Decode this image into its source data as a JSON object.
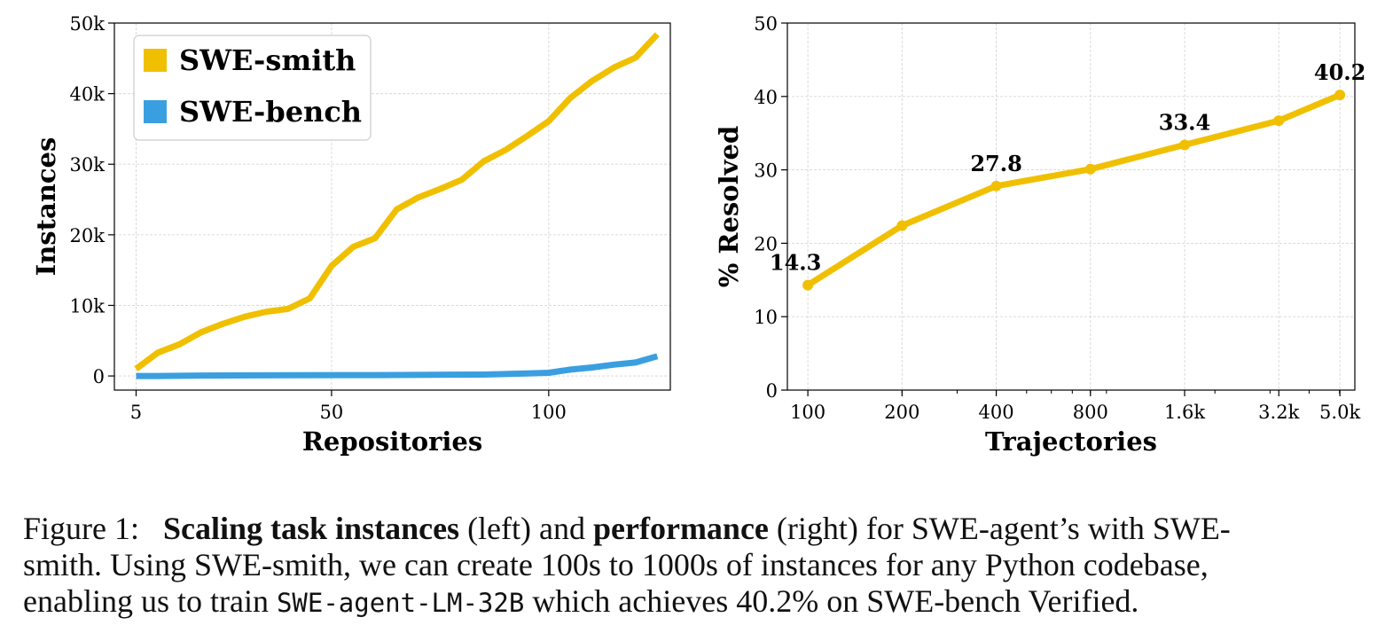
{
  "chart_data": [
    {
      "type": "line",
      "xlabel": "Repositories",
      "ylabel": "Instances",
      "xlim": [
        0,
        128
      ],
      "ylim": [
        -2000,
        50000
      ],
      "xtick_values": [
        5,
        50,
        100
      ],
      "xtick_labels": [
        "5",
        "50",
        "100"
      ],
      "ytick_values": [
        0,
        10000,
        20000,
        30000,
        40000,
        50000
      ],
      "ytick_labels": [
        "0",
        "10k",
        "20k",
        "30k",
        "40k",
        "50k"
      ],
      "grid": true,
      "legend_position": "top-left",
      "series": [
        {
          "name": "SWE-smith",
          "color": "#f0c000",
          "x": [
            5,
            10,
            15,
            20,
            25,
            30,
            35,
            40,
            45,
            50,
            55,
            60,
            65,
            70,
            75,
            80,
            85,
            90,
            95,
            100,
            105,
            110,
            115,
            120,
            125
          ],
          "y": [
            1000,
            3300,
            4500,
            6200,
            7400,
            8400,
            9100,
            9500,
            11000,
            15600,
            18300,
            19500,
            23600,
            25300,
            26500,
            27800,
            30400,
            32000,
            34000,
            36100,
            39400,
            41800,
            43700,
            45100,
            48400
          ]
        },
        {
          "name": "SWE-bench",
          "color": "#3a9fe0",
          "x": [
            5,
            10,
            20,
            40,
            60,
            85,
            95,
            100,
            105,
            110,
            115,
            120,
            125
          ],
          "y": [
            0,
            0,
            60,
            100,
            120,
            200,
            350,
            450,
            900,
            1200,
            1600,
            1900,
            2800
          ]
        }
      ]
    },
    {
      "type": "line",
      "xscale": "log",
      "xlabel": "Trajectories",
      "ylabel": "% Resolved",
      "xlim": [
        86,
        5600
      ],
      "ylim": [
        0,
        50
      ],
      "xtick_values": [
        100,
        200,
        400,
        800,
        1600,
        3200,
        5016
      ],
      "xtick_labels": [
        "100",
        "200",
        "400",
        "800",
        "1.6k",
        "3.2k",
        "5.0k"
      ],
      "ytick_values": [
        0,
        10,
        20,
        30,
        40,
        50
      ],
      "ytick_labels": [
        "0",
        "10",
        "20",
        "30",
        "40",
        "50"
      ],
      "grid": true,
      "series": [
        {
          "name": "SWE-agent-LM-32B",
          "color": "#f0c000",
          "x": [
            100,
            200,
            400,
            800,
            1600,
            3200,
            5016
          ],
          "y": [
            14.3,
            22.4,
            27.8,
            30.1,
            33.4,
            36.7,
            40.2
          ]
        }
      ],
      "annotations": [
        {
          "x": 100,
          "y": 14.3,
          "text": "14.3"
        },
        {
          "x": 400,
          "y": 27.8,
          "text": "27.8"
        },
        {
          "x": 1600,
          "y": 33.4,
          "text": "33.4"
        },
        {
          "x": 5016,
          "y": 40.2,
          "text": "40.2"
        }
      ]
    }
  ],
  "caption": {
    "prefix": "Figure 1:",
    "bold1": "Scaling task instances",
    "mid1": " (left) and ",
    "bold2": "performance",
    "mid2": " (right) for SWE-agent’s with SWE-",
    "line2": "smith. Using SWE-smith, we can create 100s to 1000s of instances for any Python codebase,",
    "line3_pre": "enabling us to train ",
    "model": "SWE-agent-LM-32B",
    "line3_post": " which achieves 40.2% on SWE-bench Verified."
  }
}
